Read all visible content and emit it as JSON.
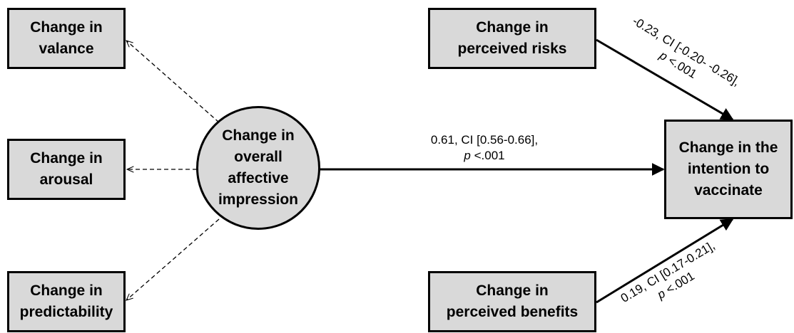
{
  "nodes": {
    "valance": [
      "Change in",
      "valance"
    ],
    "arousal": [
      "Change in",
      "arousal"
    ],
    "predictability": [
      "Change in",
      "predictability"
    ],
    "affect": [
      "Change in",
      "overall",
      "affective",
      "impression"
    ],
    "risks": [
      "Change in",
      "perceived risks"
    ],
    "benefits": [
      "Change in",
      "perceived benefits"
    ],
    "intention": [
      "Change in the",
      "intention to",
      "vaccinate"
    ]
  },
  "edges": {
    "affect_to_intention": {
      "line1": "0.61, CI [0.56-0.66],",
      "p_symbol": "p",
      "p_value": " <.001"
    },
    "risks_to_intention": {
      "line1": "-0.23, CI [-0.20- -0.26],",
      "p_symbol": "p",
      "p_value": " <.001"
    },
    "benefits_to_intention": {
      "line1": "0.19, CI [0.17-0.21],",
      "p_symbol": "p",
      "p_value": " <.001"
    }
  }
}
